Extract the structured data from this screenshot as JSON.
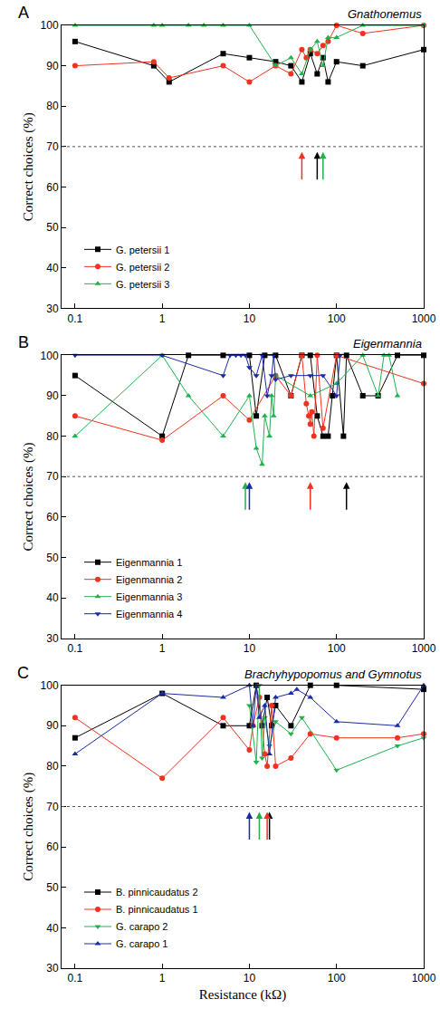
{
  "chart_data": [
    {
      "type": "line",
      "title": "Gnathonemus",
      "label": "A",
      "y_label": "Correct choices (%)",
      "xlim": [
        0.07,
        1000
      ],
      "xticks": [
        0.1,
        1,
        10,
        100,
        1000
      ],
      "ylim": [
        30,
        100
      ],
      "yticks": [
        30,
        40,
        50,
        60,
        70,
        80,
        90,
        100
      ],
      "log": "x",
      "grid": false,
      "legend": "lower left",
      "hline": 70,
      "series": [
        {
          "name": "G. petersii 1",
          "color": "#000000",
          "marker": "square",
          "threshold": 60,
          "x": [
            0.1,
            0.8,
            1.2,
            5,
            10,
            20,
            30,
            40,
            50,
            60,
            70,
            80,
            100,
            200,
            1000
          ],
          "values": [
            96,
            90,
            86,
            93,
            92,
            91,
            90,
            86,
            93,
            88,
            92,
            86,
            91,
            90,
            94
          ]
        },
        {
          "name": "G. petersii 2",
          "color": "#f0321e",
          "marker": "circle",
          "threshold": 40,
          "x": [
            0.1,
            0.8,
            1.2,
            5,
            10,
            20,
            30,
            40,
            45,
            50,
            60,
            70,
            80,
            100,
            200,
            1000
          ],
          "values": [
            90,
            91,
            87,
            90,
            86,
            90,
            88,
            94,
            92,
            94,
            93,
            95,
            96,
            100,
            98,
            100
          ]
        },
        {
          "name": "G. petersii 3",
          "color": "#22b14c",
          "marker": "triangle-up",
          "threshold": 70,
          "x": [
            0.1,
            0.8,
            1,
            2,
            3,
            5,
            10,
            20,
            30,
            40,
            50,
            60,
            70,
            80,
            100,
            200,
            1000
          ],
          "values": [
            100,
            100,
            100,
            100,
            100,
            100,
            100,
            90,
            92,
            88,
            94,
            96,
            90,
            97,
            97,
            100,
            100
          ]
        }
      ]
    },
    {
      "type": "line",
      "title": "Eigenmannia",
      "label": "B",
      "y_label": "Correct choices (%)",
      "xlim": [
        0.07,
        1000
      ],
      "xticks": [
        0.1,
        1,
        10,
        100,
        1000
      ],
      "ylim": [
        30,
        100
      ],
      "yticks": [
        30,
        40,
        50,
        60,
        70,
        80,
        90,
        100
      ],
      "log": "x",
      "grid": false,
      "legend": "lower left",
      "hline": 70,
      "series": [
        {
          "name": "Eigenmannia 1",
          "color": "#000000",
          "marker": "square",
          "threshold": 130,
          "x": [
            0.1,
            1,
            2,
            5,
            10,
            12,
            15,
            20,
            30,
            40,
            50,
            60,
            70,
            80,
            90,
            100,
            120,
            130,
            200,
            300,
            500,
            1000
          ],
          "values": [
            95,
            80,
            100,
            100,
            100,
            85,
            100,
            100,
            90,
            100,
            100,
            85,
            80,
            80,
            90,
            100,
            80,
            100,
            90,
            90,
            100,
            100
          ]
        },
        {
          "name": "Eigenmannia 2",
          "color": "#f0321e",
          "marker": "circle",
          "threshold": 50,
          "x": [
            0.1,
            1,
            5,
            10,
            20,
            30,
            40,
            45,
            48,
            50,
            52,
            55,
            60,
            70,
            100,
            1000
          ],
          "values": [
            85,
            79,
            90,
            84,
            95,
            90,
            100,
            88,
            85,
            83,
            86,
            80,
            100,
            82,
            100,
            93
          ]
        },
        {
          "name": "Eigenmannia 3",
          "color": "#22b14c",
          "marker": "triangle-up",
          "threshold": 9,
          "x": [
            0.1,
            1,
            2,
            5,
            10,
            12,
            14,
            15,
            17,
            18,
            19,
            20,
            50,
            100,
            200,
            300,
            350,
            400,
            500
          ],
          "values": [
            80,
            100,
            90,
            80,
            90,
            77,
            73,
            85,
            80,
            90,
            85,
            95,
            90,
            93,
            100,
            90,
            100,
            100,
            90
          ]
        },
        {
          "name": "Eigenmannia 4",
          "color": "#1a2aa8",
          "marker": "triangle-down",
          "threshold": 10,
          "x": [
            0.1,
            1,
            5,
            6,
            7,
            8,
            9,
            10,
            12,
            14,
            16,
            18,
            19,
            20,
            30,
            50,
            70,
            100,
            110
          ],
          "values": [
            100,
            100,
            95,
            100,
            100,
            100,
            100,
            97,
            95,
            100,
            90,
            95,
            100,
            94,
            95,
            95,
            95,
            90,
            100
          ]
        }
      ]
    },
    {
      "type": "line",
      "title": "Brachyhypopomus and Gymnotus",
      "label": "C",
      "y_label": "Correct choices (%)",
      "x_label": "Resistance (kΩ)",
      "xlim": [
        0.07,
        1000
      ],
      "xticks": [
        0.1,
        1,
        10,
        100,
        1000
      ],
      "ylim": [
        30,
        100
      ],
      "yticks": [
        30,
        40,
        50,
        60,
        70,
        80,
        90,
        100
      ],
      "log": "x",
      "grid": false,
      "legend": "lower left",
      "hline": 70,
      "series": [
        {
          "name": "B. pinnicaudatus 2",
          "color": "#000000",
          "marker": "square",
          "threshold": 17,
          "x": [
            0.1,
            1,
            5,
            10,
            12,
            14,
            16,
            18,
            20,
            30,
            50,
            100,
            1000
          ],
          "values": [
            87,
            98,
            90,
            90,
            100,
            90,
            97,
            90,
            95,
            90,
            100,
            100,
            99
          ]
        },
        {
          "name": "B. pinnicaudatus 1",
          "color": "#f0321e",
          "marker": "circle",
          "threshold": 16,
          "x": [
            0.1,
            1,
            5,
            10,
            11,
            13,
            15,
            16,
            18,
            20,
            30,
            50,
            100,
            500,
            1000
          ],
          "values": [
            92,
            77,
            92,
            84,
            90,
            97,
            83,
            80,
            95,
            80,
            82,
            88,
            87,
            87,
            88
          ]
        },
        {
          "name": "G. carapo 2",
          "color": "#22b14c",
          "marker": "triangle-down",
          "threshold": 13,
          "x": [
            10,
            12,
            13,
            14,
            15,
            17,
            20,
            30,
            40,
            100,
            500,
            1000
          ],
          "values": [
            95,
            81,
            100,
            82,
            92,
            85,
            91,
            88,
            92,
            79,
            85,
            87
          ]
        },
        {
          "name": "G. carapo 1",
          "color": "#1a2aa8",
          "marker": "triangle-up",
          "threshold": 10,
          "x": [
            0.1,
            1,
            5,
            10,
            11,
            12,
            13,
            15,
            17,
            20,
            30,
            35,
            50,
            100,
            500,
            1000
          ],
          "values": [
            83,
            98,
            97,
            100,
            90,
            100,
            92,
            95,
            83,
            97,
            98,
            99,
            97,
            91,
            90,
            100
          ]
        }
      ]
    }
  ]
}
